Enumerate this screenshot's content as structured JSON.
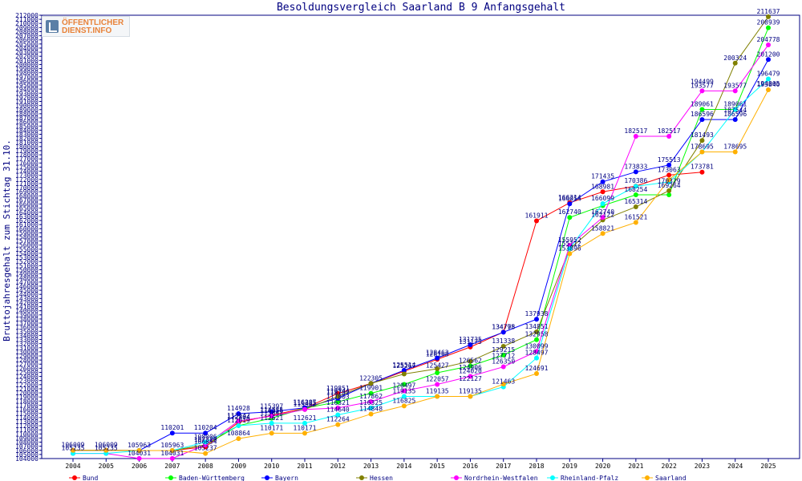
{
  "logo": {
    "line1": "ÖFFENTLICHER",
    "line2": "DIENST.INFO"
  },
  "chart_data": {
    "type": "line",
    "title": "Besoldungsvergleich Saarland B 9 Anfangsgehalt",
    "ylabel": "Bruttojahresgehalt zum Stichtag 31.10.",
    "xlabel": "",
    "x": [
      "2004",
      "2005",
      "2006",
      "2007",
      "2008",
      "2009",
      "2010",
      "2011",
      "2012",
      "2013",
      "2014",
      "2015",
      "2016",
      "2017",
      "2018",
      "2019",
      "2020",
      "2021",
      "2022",
      "2023",
      "2024",
      "2025"
    ],
    "ylim": [
      104000,
      212000
    ],
    "ytick_step": 1000,
    "grid": false,
    "legend_position": "bottom",
    "series": [
      {
        "name": "Bund",
        "color": "#ff0000",
        "values": [
          106009,
          106009,
          105963,
          105963,
          106854,
          112804,
          114535,
          116285,
          119851,
          122305,
          125267,
          128168,
          131175,
          134798,
          161911,
          166314,
          168981,
          170386,
          173063,
          173781,
          null,
          null
        ]
      },
      {
        "name": "Baden-Württemberg",
        "color": "#00ff00",
        "values": [
          106009,
          106009,
          105963,
          105963,
          107329,
          112019,
          113842,
          116285,
          117803,
          119901,
          122057,
          124906,
          126562,
          129215,
          132958,
          162740,
          165625,
          168254,
          168254,
          189061,
          189061,
          208939
        ]
      },
      {
        "name": "Bayern",
        "color": "#0000ff",
        "values": [
          106009,
          106009,
          105963,
          110201,
          110204,
          114928,
          115397,
          116387,
          118702,
          122305,
          125514,
          128463,
          131735,
          134775,
          137938,
          166054,
          171435,
          173833,
          175513,
          186596,
          186596,
          201200
        ]
      },
      {
        "name": "Hessen",
        "color": "#808000",
        "values": [
          106009,
          106009,
          105963,
          105963,
          107329,
          113142,
          114356,
          115962,
          119144,
          122305,
          124606,
          125865,
          127712,
          131338,
          134851,
          155052,
          162122,
          165314,
          169264,
          181493,
          200324,
          211637
        ]
      },
      {
        "name": "Nordrhein-Westfalen",
        "color": "#ff00ff",
        "values": [
          105235,
          105235,
          104031,
          104031,
          107329,
          113142,
          114356,
          115962,
          116321,
          117862,
          120497,
          122057,
          124020,
          126350,
          130099,
          155952,
          162740,
          182517,
          182517,
          193577,
          193577,
          204778
        ]
      },
      {
        "name": "Rheinland-Pfalz",
        "color": "#00ffff",
        "values": [
          105237,
          105237,
          105963,
          105963,
          108006,
          112019,
          112621,
          112621,
          114640,
          116325,
          119135,
          119135,
          119135,
          121463,
          128497,
          155112,
          166099,
          170329,
          171386,
          178695,
          189061,
          196479
        ]
      },
      {
        "name": "Saarland",
        "color": "#ffb000",
        "values": [
          106009,
          106009,
          105963,
          105963,
          105237,
          108864,
          110171,
          110171,
          112264,
          114848,
          116825,
          119135,
          119135,
          122127,
          124691,
          153896,
          158821,
          161521,
          171924,
          178695,
          178695,
          193840
        ]
      }
    ],
    "data_labels": [
      {
        "x": "2004",
        "y": 106009,
        "text": "106009"
      },
      {
        "x": "2004",
        "y": 105235,
        "text": "105235"
      },
      {
        "x": "2005",
        "y": 106009,
        "text": "106009"
      },
      {
        "x": "2005",
        "y": 105235,
        "text": "105235"
      },
      {
        "x": "2006",
        "y": 105963,
        "text": "105963"
      },
      {
        "x": "2006",
        "y": 104031,
        "text": "104031"
      },
      {
        "x": "2007",
        "y": 110201,
        "text": "110201"
      },
      {
        "x": "2007",
        "y": 105963,
        "text": "105963"
      },
      {
        "x": "2007",
        "y": 104031,
        "text": "104031"
      },
      {
        "x": "2008",
        "y": 110204,
        "text": "110204"
      },
      {
        "x": "2008",
        "y": 108006,
        "text": "108006"
      },
      {
        "x": "2008",
        "y": 107329,
        "text": "107329"
      },
      {
        "x": "2008",
        "y": 106854,
        "text": "106854"
      },
      {
        "x": "2008",
        "y": 105237,
        "text": "105237"
      },
      {
        "x": "2009",
        "y": 114928,
        "text": "114928"
      },
      {
        "x": "2009",
        "y": 113142,
        "text": "113142"
      },
      {
        "x": "2009",
        "y": 112804,
        "text": "112804"
      },
      {
        "x": "2009",
        "y": 112019,
        "text": "112019"
      },
      {
        "x": "2009",
        "y": 108864,
        "text": "108864"
      },
      {
        "x": "2010",
        "y": 115397,
        "text": "115397"
      },
      {
        "x": "2010",
        "y": 114535,
        "text": "114535"
      },
      {
        "x": "2010",
        "y": 114356,
        "text": "114356"
      },
      {
        "x": "2010",
        "y": 113842,
        "text": "113842"
      },
      {
        "x": "2010",
        "y": 112621,
        "text": "112621"
      },
      {
        "x": "2010",
        "y": 110171,
        "text": "110171"
      },
      {
        "x": "2011",
        "y": 116387,
        "text": "116387"
      },
      {
        "x": "2011",
        "y": 116285,
        "text": "116285"
      },
      {
        "x": "2011",
        "y": 115962,
        "text": "115962"
      },
      {
        "x": "2011",
        "y": 112621,
        "text": "112621"
      },
      {
        "x": "2011",
        "y": 110171,
        "text": "110171"
      },
      {
        "x": "2012",
        "y": 119851,
        "text": "119851"
      },
      {
        "x": "2012",
        "y": 119144,
        "text": "119144"
      },
      {
        "x": "2012",
        "y": 118702,
        "text": "118702"
      },
      {
        "x": "2012",
        "y": 117803,
        "text": "117803"
      },
      {
        "x": "2012",
        "y": 116321,
        "text": "116321"
      },
      {
        "x": "2012",
        "y": 114640,
        "text": "114640"
      },
      {
        "x": "2012",
        "y": 112264,
        "text": "112264"
      },
      {
        "x": "2013",
        "y": 122305,
        "text": "122305"
      },
      {
        "x": "2013",
        "y": 119901,
        "text": "119901"
      },
      {
        "x": "2013",
        "y": 117862,
        "text": "117862"
      },
      {
        "x": "2013",
        "y": 116325,
        "text": "116325"
      },
      {
        "x": "2013",
        "y": 114848,
        "text": "114848"
      },
      {
        "x": "2014",
        "y": 125514,
        "text": "125514"
      },
      {
        "x": "2014",
        "y": 125267,
        "text": "125267"
      },
      {
        "x": "2014",
        "y": 120497,
        "text": "120497"
      },
      {
        "x": "2014",
        "y": 119135,
        "text": "119135"
      },
      {
        "x": "2014",
        "y": 116825,
        "text": "116825"
      },
      {
        "x": "2015",
        "y": 128463,
        "text": "128463"
      },
      {
        "x": "2015",
        "y": 128168,
        "text": "128168"
      },
      {
        "x": "2015",
        "y": 125427,
        "text": "125427"
      },
      {
        "x": "2015",
        "y": 122057,
        "text": "122057"
      },
      {
        "x": "2015",
        "y": 119135,
        "text": "119135"
      },
      {
        "x": "2016",
        "y": 131735,
        "text": "131735"
      },
      {
        "x": "2016",
        "y": 131175,
        "text": "131175"
      },
      {
        "x": "2016",
        "y": 126562,
        "text": "126562"
      },
      {
        "x": "2016",
        "y": 124906,
        "text": "124906"
      },
      {
        "x": "2016",
        "y": 124020,
        "text": "124020"
      },
      {
        "x": "2016",
        "y": 122127,
        "text": "122127"
      },
      {
        "x": "2016",
        "y": 119135,
        "text": "119135"
      },
      {
        "x": "2017",
        "y": 134798,
        "text": "134798"
      },
      {
        "x": "2017",
        "y": 134775,
        "text": "134775"
      },
      {
        "x": "2017",
        "y": 131338,
        "text": "131338"
      },
      {
        "x": "2017",
        "y": 129215,
        "text": "129215"
      },
      {
        "x": "2017",
        "y": 127712,
        "text": "127712"
      },
      {
        "x": "2017",
        "y": 126350,
        "text": "126350"
      },
      {
        "x": "2017",
        "y": 121463,
        "text": "121463"
      },
      {
        "x": "2018",
        "y": 161911,
        "text": "161911"
      },
      {
        "x": "2018",
        "y": 137938,
        "text": "137938"
      },
      {
        "x": "2018",
        "y": 134851,
        "text": "134851"
      },
      {
        "x": "2018",
        "y": 132958,
        "text": "132958"
      },
      {
        "x": "2018",
        "y": 130099,
        "text": "130099"
      },
      {
        "x": "2018",
        "y": 128497,
        "text": "128497"
      },
      {
        "x": "2018",
        "y": 124691,
        "text": "124691"
      },
      {
        "x": "2019",
        "y": 166314,
        "text": "166314"
      },
      {
        "x": "2019",
        "y": 166054,
        "text": "166054"
      },
      {
        "x": "2019",
        "y": 162740,
        "text": "162740"
      },
      {
        "x": "2019",
        "y": 155952,
        "text": "155952"
      },
      {
        "x": "2019",
        "y": 155112,
        "text": "155112"
      },
      {
        "x": "2019",
        "y": 153896,
        "text": "153896"
      },
      {
        "x": "2020",
        "y": 171435,
        "text": "171435"
      },
      {
        "x": "2020",
        "y": 168981,
        "text": "168981"
      },
      {
        "x": "2020",
        "y": 166099,
        "text": "166099"
      },
      {
        "x": "2020",
        "y": 162740,
        "text": "162740"
      },
      {
        "x": "2020",
        "y": 162122,
        "text": "162122"
      },
      {
        "x": "2020",
        "y": 158821,
        "text": "158821"
      },
      {
        "x": "2021",
        "y": 182517,
        "text": "182517"
      },
      {
        "x": "2021",
        "y": 173833,
        "text": "173833"
      },
      {
        "x": "2021",
        "y": 170386,
        "text": "170386"
      },
      {
        "x": "2021",
        "y": 168254,
        "text": "168254"
      },
      {
        "x": "2021",
        "y": 165314,
        "text": "165314"
      },
      {
        "x": "2021",
        "y": 161521,
        "text": "161521"
      },
      {
        "x": "2022",
        "y": 182517,
        "text": "182517"
      },
      {
        "x": "2022",
        "y": 175513,
        "text": "175513"
      },
      {
        "x": "2022",
        "y": 173063,
        "text": "173063"
      },
      {
        "x": "2022",
        "y": 170329,
        "text": "170329"
      },
      {
        "x": "2022",
        "y": 169264,
        "text": "169264"
      },
      {
        "x": "2023",
        "y": 194499,
        "text": "194499"
      },
      {
        "x": "2023",
        "y": 193577,
        "text": "193577"
      },
      {
        "x": "2023",
        "y": 189061,
        "text": "189061"
      },
      {
        "x": "2023",
        "y": 186596,
        "text": "186596"
      },
      {
        "x": "2023",
        "y": 181493,
        "text": "181493"
      },
      {
        "x": "2023",
        "y": 178695,
        "text": "178695"
      },
      {
        "x": "2023",
        "y": 173781,
        "text": "173781"
      },
      {
        "x": "2024",
        "y": 200324,
        "text": "200324"
      },
      {
        "x": "2024",
        "y": 193577,
        "text": "193577"
      },
      {
        "x": "2024",
        "y": 189061,
        "text": "189061"
      },
      {
        "x": "2024",
        "y": 187544,
        "text": "187544"
      },
      {
        "x": "2024",
        "y": 186596,
        "text": "186596"
      },
      {
        "x": "2024",
        "y": 178695,
        "text": "178695"
      },
      {
        "x": "2025",
        "y": 211637,
        "text": "211637"
      },
      {
        "x": "2025",
        "y": 208939,
        "text": "208939"
      },
      {
        "x": "2025",
        "y": 204778,
        "text": "204778"
      },
      {
        "x": "2025",
        "y": 201200,
        "text": "201200"
      },
      {
        "x": "2025",
        "y": 196479,
        "text": "196479"
      },
      {
        "x": "2025",
        "y": 194005,
        "text": "194005"
      },
      {
        "x": "2025",
        "y": 193840,
        "text": "193840"
      }
    ]
  }
}
